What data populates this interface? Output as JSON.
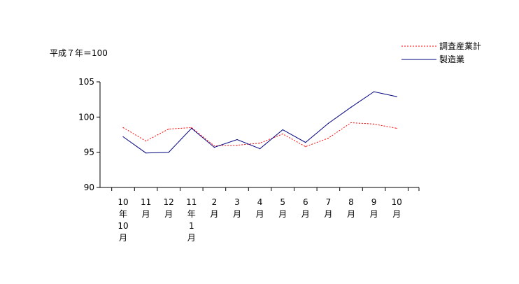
{
  "chart_data": {
    "type": "line",
    "unit_note": "平成７年＝100",
    "x_labels": [
      [
        "10",
        "年",
        "10",
        "月"
      ],
      [
        "11",
        "月"
      ],
      [
        "12",
        "月"
      ],
      [
        "11",
        "年",
        "1",
        "月"
      ],
      [
        "2",
        "月"
      ],
      [
        "3",
        "月"
      ],
      [
        "4",
        "月"
      ],
      [
        "5",
        "月"
      ],
      [
        "6",
        "月"
      ],
      [
        "7",
        "月"
      ],
      [
        "8",
        "月"
      ],
      [
        "9",
        "月"
      ],
      [
        "10",
        "月"
      ]
    ],
    "ylim": [
      90,
      105
    ],
    "yticks": [
      90,
      95,
      100,
      105
    ],
    "grid": false,
    "legend_position": "top-right",
    "series": [
      {
        "name": "調査産業計",
        "color": "#ff0000",
        "dash": "dotted",
        "values": [
          98.5,
          96.6,
          98.3,
          98.5,
          95.9,
          96.0,
          96.3,
          97.6,
          95.8,
          97.0,
          99.2,
          99.0,
          98.4
        ]
      },
      {
        "name": "製造業",
        "color": "#000080",
        "dash": "solid",
        "values": [
          97.2,
          94.9,
          95.0,
          98.4,
          95.7,
          96.8,
          95.5,
          98.2,
          96.4,
          99.1,
          101.4,
          103.6,
          102.9
        ]
      }
    ]
  }
}
